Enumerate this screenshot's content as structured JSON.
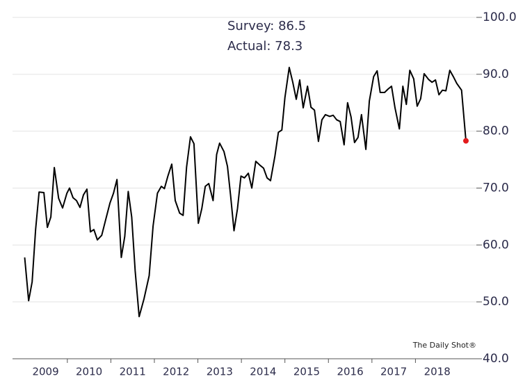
{
  "chart_data": {
    "type": "line",
    "annotations": [
      "Survey: 86.5",
      "Actual: 78.3"
    ],
    "watermark": "The Daily Shot®",
    "x": [
      2009.02,
      2009.11,
      2009.19,
      2009.27,
      2009.35,
      2009.46,
      2009.54,
      2009.62,
      2009.7,
      2009.8,
      2009.89,
      2009.99,
      2010.05,
      2010.13,
      2010.21,
      2010.29,
      2010.37,
      2010.45,
      2010.53,
      2010.61,
      2010.69,
      2010.79,
      2010.88,
      2010.98,
      2011.06,
      2011.14,
      2011.24,
      2011.32,
      2011.4,
      2011.48,
      2011.56,
      2011.65,
      2011.76,
      2011.88,
      2011.97,
      2012.07,
      2012.16,
      2012.23,
      2012.31,
      2012.4,
      2012.48,
      2012.58,
      2012.66,
      2012.74,
      2012.83,
      2012.91,
      2013.01,
      2013.09,
      2013.17,
      2013.25,
      2013.35,
      2013.43,
      2013.5,
      2013.6,
      2013.68,
      2013.75,
      2013.83,
      2013.91,
      2013.99,
      2014.07,
      2014.16,
      2014.24,
      2014.33,
      2014.43,
      2014.51,
      2014.59,
      2014.67,
      2014.77,
      2014.85,
      2014.93,
      2015.0,
      2015.1,
      2015.18,
      2015.26,
      2015.34,
      2015.42,
      2015.52,
      2015.6,
      2015.68,
      2015.77,
      2015.85,
      2015.93,
      2016.03,
      2016.11,
      2016.19,
      2016.27,
      2016.36,
      2016.44,
      2016.52,
      2016.6,
      2016.68,
      2016.76,
      2016.86,
      2016.94,
      2017.04,
      2017.12,
      2017.19,
      2017.29,
      2017.37,
      2017.45,
      2017.53,
      2017.63,
      2017.71,
      2017.79,
      2017.87,
      2017.96,
      2018.04,
      2018.12,
      2018.2,
      2018.3,
      2018.38,
      2018.46,
      2018.54,
      2018.62,
      2018.7,
      2018.79,
      2018.87,
      2018.95,
      2019.06,
      2019.16
    ],
    "series": [
      {
        "color": "#000000",
        "last_color": "#e31a1c",
        "values": [
          57.8,
          50.2,
          53.5,
          62.7,
          69.3,
          69.2,
          63.1,
          64.9,
          73.6,
          68.2,
          66.5,
          69.1,
          70.0,
          68.3,
          67.8,
          66.6,
          68.8,
          69.8,
          62.3,
          62.7,
          60.9,
          61.7,
          64.4,
          67.4,
          69.1,
          71.5,
          57.8,
          61.5,
          69.4,
          64.9,
          55.4,
          47.4,
          50.5,
          54.6,
          63.3,
          69.1,
          70.3,
          69.9,
          72.1,
          74.2,
          67.8,
          65.6,
          65.2,
          73.7,
          79.0,
          77.8,
          63.8,
          66.4,
          70.3,
          70.8,
          67.8,
          75.9,
          77.9,
          76.4,
          73.8,
          68.8,
          62.5,
          66.4,
          72.1,
          71.8,
          72.6,
          70.0,
          74.7,
          74.0,
          73.5,
          71.8,
          71.3,
          75.6,
          79.8,
          80.2,
          85.9,
          91.2,
          88.6,
          85.6,
          89.0,
          84.1,
          87.9,
          84.2,
          83.7,
          78.2,
          82.0,
          82.9,
          82.6,
          82.8,
          82.0,
          81.7,
          77.6,
          85.0,
          82.5,
          78.0,
          78.9,
          82.9,
          76.8,
          85.3,
          89.6,
          90.6,
          86.8,
          86.8,
          87.4,
          87.9,
          84.1,
          80.4,
          87.9,
          84.7,
          90.7,
          89.2,
          84.4,
          85.7,
          90.1,
          89.1,
          88.6,
          89.0,
          86.4,
          87.2,
          87.1,
          90.7,
          89.6,
          88.4,
          87.2,
          78.3
        ]
      }
    ],
    "xlim": [
      2008.74,
      2019.4
    ],
    "xticks": [
      2009,
      2010,
      2011,
      2012,
      2013,
      2014,
      2015,
      2016,
      2017,
      2018
    ],
    "ylim": [
      40,
      100
    ],
    "yticks": [
      {
        "value": 40,
        "label": "40.0"
      },
      {
        "value": 50,
        "label": "50.0"
      },
      {
        "value": 60,
        "label": "60.0"
      },
      {
        "value": 70,
        "label": "70.0"
      },
      {
        "value": 80,
        "label": "80.0"
      },
      {
        "value": 90,
        "label": "90.0"
      },
      {
        "value": 100,
        "label": "100.0"
      }
    ],
    "y_axis_side": "right",
    "grid": true
  }
}
